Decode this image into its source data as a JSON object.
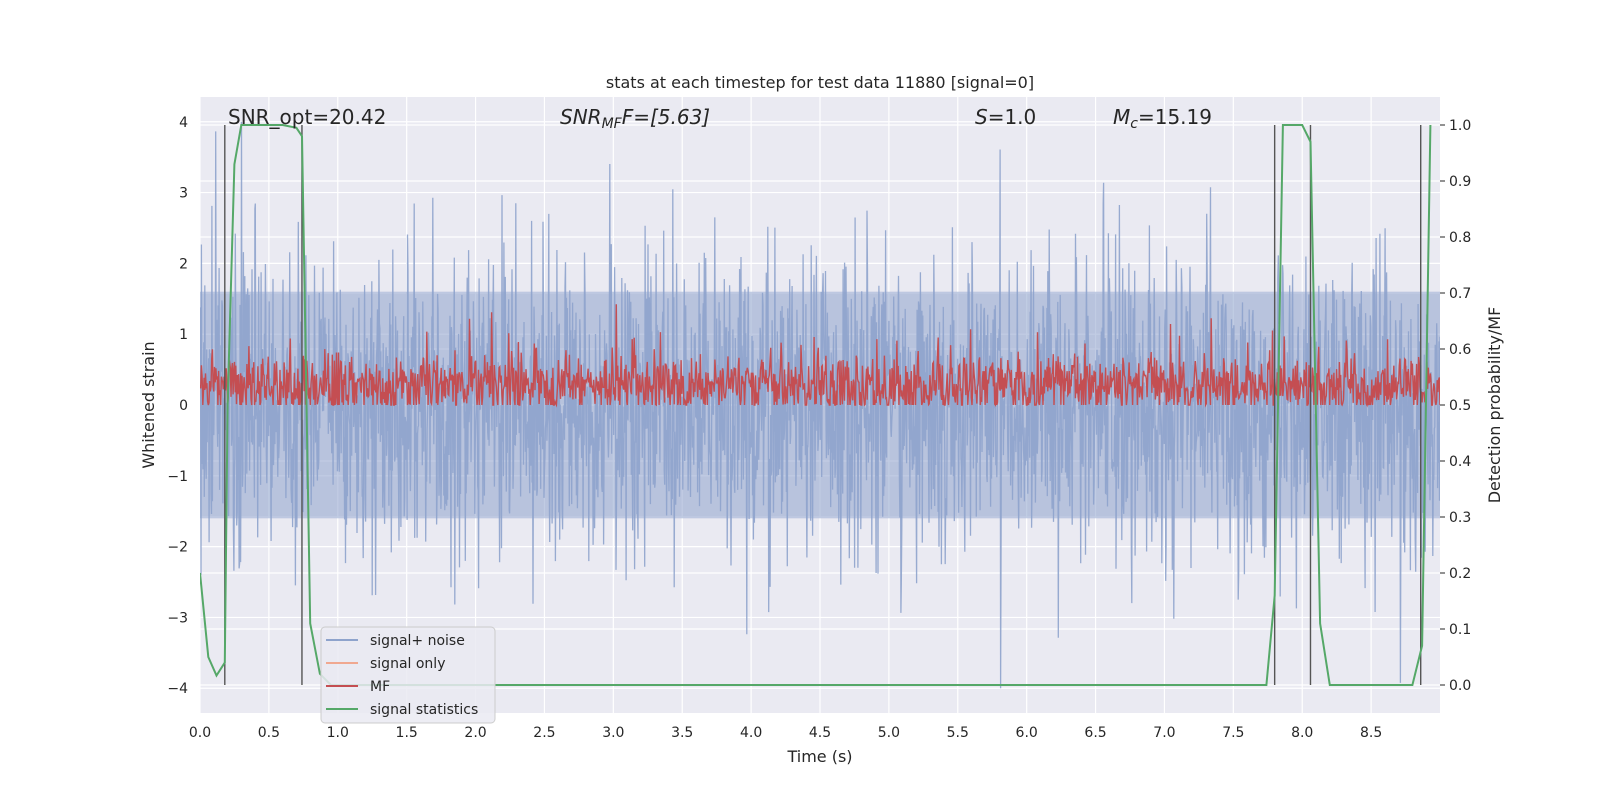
{
  "chart_data": {
    "type": "line",
    "title": "stats at each timestep for test data 11880 [signal=0]",
    "xlabel": "Time (s)",
    "ylabel": "Whitened strain",
    "ylabel_right": "Detection probability/MF",
    "xlim": [
      0.0,
      9.0
    ],
    "ylim": [
      -4.35,
      4.35
    ],
    "ylim_right": [
      -0.05,
      1.05
    ],
    "x_ticks": [
      0.0,
      0.5,
      1.0,
      1.5,
      2.0,
      2.5,
      3.0,
      3.5,
      4.0,
      4.5,
      5.0,
      5.5,
      6.0,
      6.5,
      7.0,
      7.5,
      8.0,
      8.5
    ],
    "x_tick_labels": [
      "0.0",
      "0.5",
      "1.0",
      "1.5",
      "2.0",
      "2.5",
      "3.0",
      "3.5",
      "4.0",
      "4.5",
      "5.0",
      "5.5",
      "6.0",
      "6.5",
      "7.0",
      "7.5",
      "8.0",
      "8.5"
    ],
    "y_ticks": [
      -4,
      -3,
      -2,
      -1,
      0,
      1,
      2,
      3,
      4
    ],
    "y_tick_labels": [
      "−4",
      "−3",
      "−2",
      "−1",
      "0",
      "1",
      "2",
      "3",
      "4"
    ],
    "y_ticks_right": [
      0.0,
      0.1,
      0.2,
      0.3,
      0.4,
      0.5,
      0.6,
      0.7,
      0.8,
      0.9,
      1.0
    ],
    "y_tick_labels_right": [
      "0.0",
      "0.1",
      "0.2",
      "0.3",
      "0.4",
      "0.5",
      "0.6",
      "0.7",
      "0.8",
      "0.9",
      "1.0"
    ],
    "grid": true,
    "legend_position": "lower-left",
    "annotations": {
      "snr_opt": "SNR_opt=20.42",
      "snr_mf_name": "SNR",
      "snr_mf_sub": "MF",
      "snr_mf_rest": "F=[5.63]",
      "s_name": "S",
      "s_rest": "=1.0",
      "mc_name": "M",
      "mc_sub": "c",
      "mc_rest": "=15.19"
    },
    "series": [
      {
        "name": "signal+ noise",
        "axis": "left",
        "color": "#8ea3cc",
        "note_style": "dense noise between about -2.5 and 2.5 with spikes to about 4 and -4"
      },
      {
        "name": "signal only",
        "axis": "left",
        "color": "#f0a890",
        "x": [],
        "y": []
      },
      {
        "name": "MF",
        "axis": "right",
        "color": "#c44e52"
      },
      {
        "name": "signal statistics",
        "axis": "right",
        "color": "#55a868",
        "x": [
          0.0,
          0.06,
          0.12,
          0.18,
          0.2,
          0.25,
          0.3,
          0.4,
          0.5,
          0.6,
          0.7,
          0.74,
          0.8,
          0.87,
          0.95,
          1.0,
          2.0,
          3.0,
          4.0,
          5.0,
          6.0,
          7.0,
          7.5,
          7.74,
          7.8,
          7.86,
          7.92,
          8.0,
          8.06,
          8.13,
          8.2,
          8.5,
          8.8,
          8.87,
          8.93
        ],
        "y": [
          0.2,
          0.05,
          0.017,
          0.04,
          0.5,
          0.93,
          1.0,
          1.0,
          1.0,
          1.0,
          0.995,
          0.98,
          0.11,
          0.02,
          0.0,
          0.0,
          0.0,
          0.0,
          0.0,
          0.0,
          0.0,
          0.0,
          0.0,
          0.0,
          0.16,
          1.0,
          1.0,
          1.0,
          0.97,
          0.11,
          0.0,
          0.0,
          0.0,
          0.07,
          1.0
        ]
      }
    ],
    "vertical_lines_x": [
      0.18,
      0.74,
      7.8,
      8.06,
      8.86
    ]
  }
}
